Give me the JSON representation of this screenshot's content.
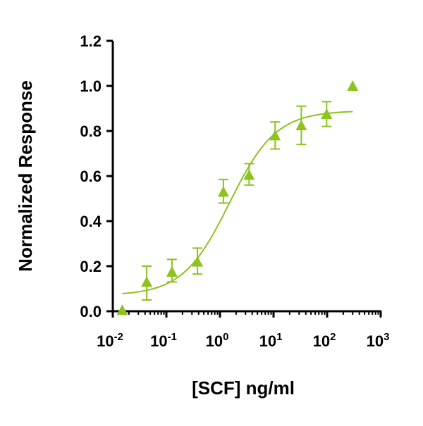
{
  "chart_data": {
    "type": "scatter",
    "title": "",
    "xlabel": "[SCF] ng/ml",
    "ylabel": "Normalized Response",
    "xscale": "log",
    "xlim": [
      0.01,
      1000
    ],
    "ylim": [
      0,
      1.2
    ],
    "x_ticks": [
      {
        "value": 0.01,
        "base": "10",
        "exp": "-2"
      },
      {
        "value": 0.1,
        "base": "10",
        "exp": "-1"
      },
      {
        "value": 1,
        "base": "10",
        "exp": "0"
      },
      {
        "value": 10,
        "base": "10",
        "exp": "1"
      },
      {
        "value": 100,
        "base": "10",
        "exp": "2"
      },
      {
        "value": 1000,
        "base": "10",
        "exp": "3"
      }
    ],
    "y_ticks": [
      "0.0",
      "0.2",
      "0.4",
      "0.6",
      "0.8",
      "1.0",
      "1.2"
    ],
    "color": "#8dc21f",
    "series": [
      {
        "name": "SCF",
        "marker": "triangle",
        "points": [
          {
            "x": 0.015,
            "y": 0.005,
            "lo": null,
            "hi": null
          },
          {
            "x": 0.043,
            "y": 0.13,
            "lo": 0.05,
            "hi": 0.2
          },
          {
            "x": 0.127,
            "y": 0.175,
            "lo": 0.13,
            "hi": 0.23
          },
          {
            "x": 0.38,
            "y": 0.22,
            "lo": 0.165,
            "hi": 0.28
          },
          {
            "x": 1.16,
            "y": 0.53,
            "lo": 0.48,
            "hi": 0.585
          },
          {
            "x": 3.5,
            "y": 0.605,
            "lo": 0.56,
            "hi": 0.655
          },
          {
            "x": 10.7,
            "y": 0.78,
            "lo": 0.72,
            "hi": 0.84
          },
          {
            "x": 33,
            "y": 0.825,
            "lo": 0.74,
            "hi": 0.91
          },
          {
            "x": 98,
            "y": 0.875,
            "lo": 0.82,
            "hi": 0.93
          },
          {
            "x": 300,
            "y": 1.0,
            "lo": null,
            "hi": null
          }
        ],
        "fit": {
          "model": "4PL",
          "bottom": 0.07,
          "top": 0.89,
          "ec50": 1.5,
          "hill": 1.0,
          "x_range": [
            0.015,
            300
          ]
        }
      }
    ]
  }
}
